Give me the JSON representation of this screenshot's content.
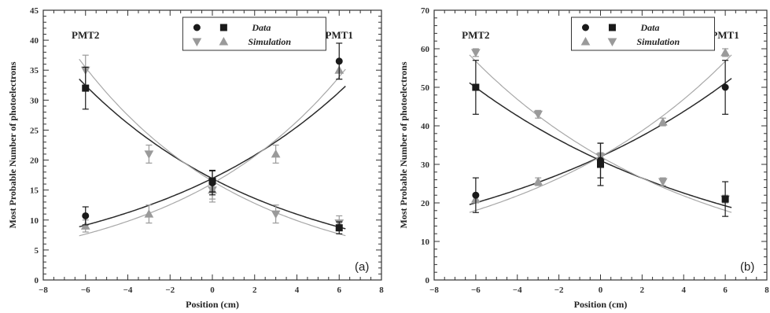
{
  "chart_data": [
    {
      "type": "scatter",
      "panel_label": "(a)",
      "xlabel": "Position (cm)",
      "ylabel": "Most Probable Number of photoelectrons",
      "xlim": [
        -8,
        8
      ],
      "ylim": [
        0,
        45
      ],
      "xticks": [
        -8,
        -6,
        -4,
        -2,
        0,
        2,
        4,
        6,
        8
      ],
      "yticks": [
        0,
        5,
        10,
        15,
        20,
        25,
        30,
        35,
        40,
        45
      ],
      "annotations": {
        "left": "PMT2",
        "right": "PMT1"
      },
      "legend": {
        "position": "top-center",
        "row1": "Data",
        "row2": "Simulation"
      },
      "series": [
        {
          "id": "data_pmt1",
          "name": "Data",
          "marker": "circle",
          "color": "#1a1a1a",
          "points": [
            [
              -6,
              10.7,
              1.5
            ],
            [
              0,
              16.2,
              2.0
            ],
            [
              6,
              36.5,
              3.0
            ]
          ],
          "fit": {
            "a": 16.94,
            "b": 0.1026
          }
        },
        {
          "id": "data_pmt2",
          "name": "Data",
          "marker": "square",
          "color": "#1a1a1a",
          "points": [
            [
              -6,
              32.0,
              3.5
            ],
            [
              0,
              16.5,
              1.8
            ],
            [
              6,
              8.7,
              1.0
            ]
          ],
          "fit": {
            "a": 16.92,
            "b": -0.1085
          }
        },
        {
          "id": "sim_pmt1",
          "name": "Simulation",
          "marker": "triangle-up",
          "color": "#9a9a9a",
          "points": [
            [
              -6,
              9.0,
              1.0
            ],
            [
              -3,
              11.0,
              1.5
            ],
            [
              0,
              15.0,
              2.0
            ],
            [
              3,
              21.0,
              1.5
            ],
            [
              6,
              35.0,
              1.5
            ]
          ],
          "fit": {
            "a": 16.1,
            "b": 0.124
          }
        },
        {
          "id": "sim_pmt2",
          "name": "Simulation",
          "marker": "triangle-down",
          "color": "#9a9a9a",
          "points": [
            [
              -6,
              35.0,
              2.5
            ],
            [
              -3,
              21.0,
              1.5
            ],
            [
              0,
              15.0,
              1.5
            ],
            [
              3,
              11.0,
              1.5
            ],
            [
              6,
              9.5,
              1.2
            ]
          ],
          "fit": {
            "a": 16.5,
            "b": -0.1275
          }
        }
      ]
    },
    {
      "type": "scatter",
      "panel_label": "(b)",
      "xlabel": "Position (cm)",
      "ylabel": "Most Probable Number of photoelectrons",
      "xlim": [
        -8,
        8
      ],
      "ylim": [
        0,
        70
      ],
      "xticks": [
        -8,
        -6,
        -4,
        -2,
        0,
        2,
        4,
        6,
        8
      ],
      "yticks": [
        0,
        10,
        20,
        30,
        40,
        50,
        60,
        70
      ],
      "annotations": {
        "left": "PMT2",
        "right": "PMT1"
      },
      "legend": {
        "position": "top-center",
        "row1": "Data",
        "row2": "Simulation"
      },
      "series": [
        {
          "id": "data_pmt1",
          "name": "Data",
          "marker": "circle",
          "color": "#1a1a1a",
          "points": [
            [
              -6,
              22.0,
              4.5
            ],
            [
              0,
              31.0,
              4.5
            ],
            [
              6,
              50.0,
              7.0
            ]
          ],
          "fit": {
            "a": 32.0,
            "b": 0.078
          }
        },
        {
          "id": "data_pmt2",
          "name": "Data",
          "marker": "square",
          "color": "#1a1a1a",
          "points": [
            [
              -6,
              50.0,
              7.0
            ],
            [
              0,
              30.0,
              5.5
            ],
            [
              6,
              21.0,
              4.5
            ]
          ],
          "fit": {
            "a": 31.0,
            "b": -0.0795
          }
        },
        {
          "id": "sim_pmt1",
          "name": "Simulation",
          "marker": "triangle-up",
          "color": "#9a9a9a",
          "points": [
            [
              -6,
              21.0,
              1.0
            ],
            [
              -3,
              25.5,
              1.0
            ],
            [
              0,
              32.0,
              1.0
            ],
            [
              3,
              41.0,
              1.0
            ],
            [
              6,
              59.0,
              1.0
            ]
          ],
          "fit": {
            "a": 32.0,
            "b": 0.0955
          }
        },
        {
          "id": "sim_pmt2",
          "name": "Simulation",
          "marker": "triangle-down",
          "color": "#9a9a9a",
          "points": [
            [
              -6,
              59.0,
              1.0
            ],
            [
              -3,
              43.0,
              1.0
            ],
            [
              0,
              32.0,
              1.0
            ],
            [
              3,
              25.5,
              1.0
            ],
            [
              6,
              21.0,
              1.0
            ]
          ],
          "fit": {
            "a": 32.0,
            "b": -0.0955
          }
        }
      ]
    }
  ]
}
